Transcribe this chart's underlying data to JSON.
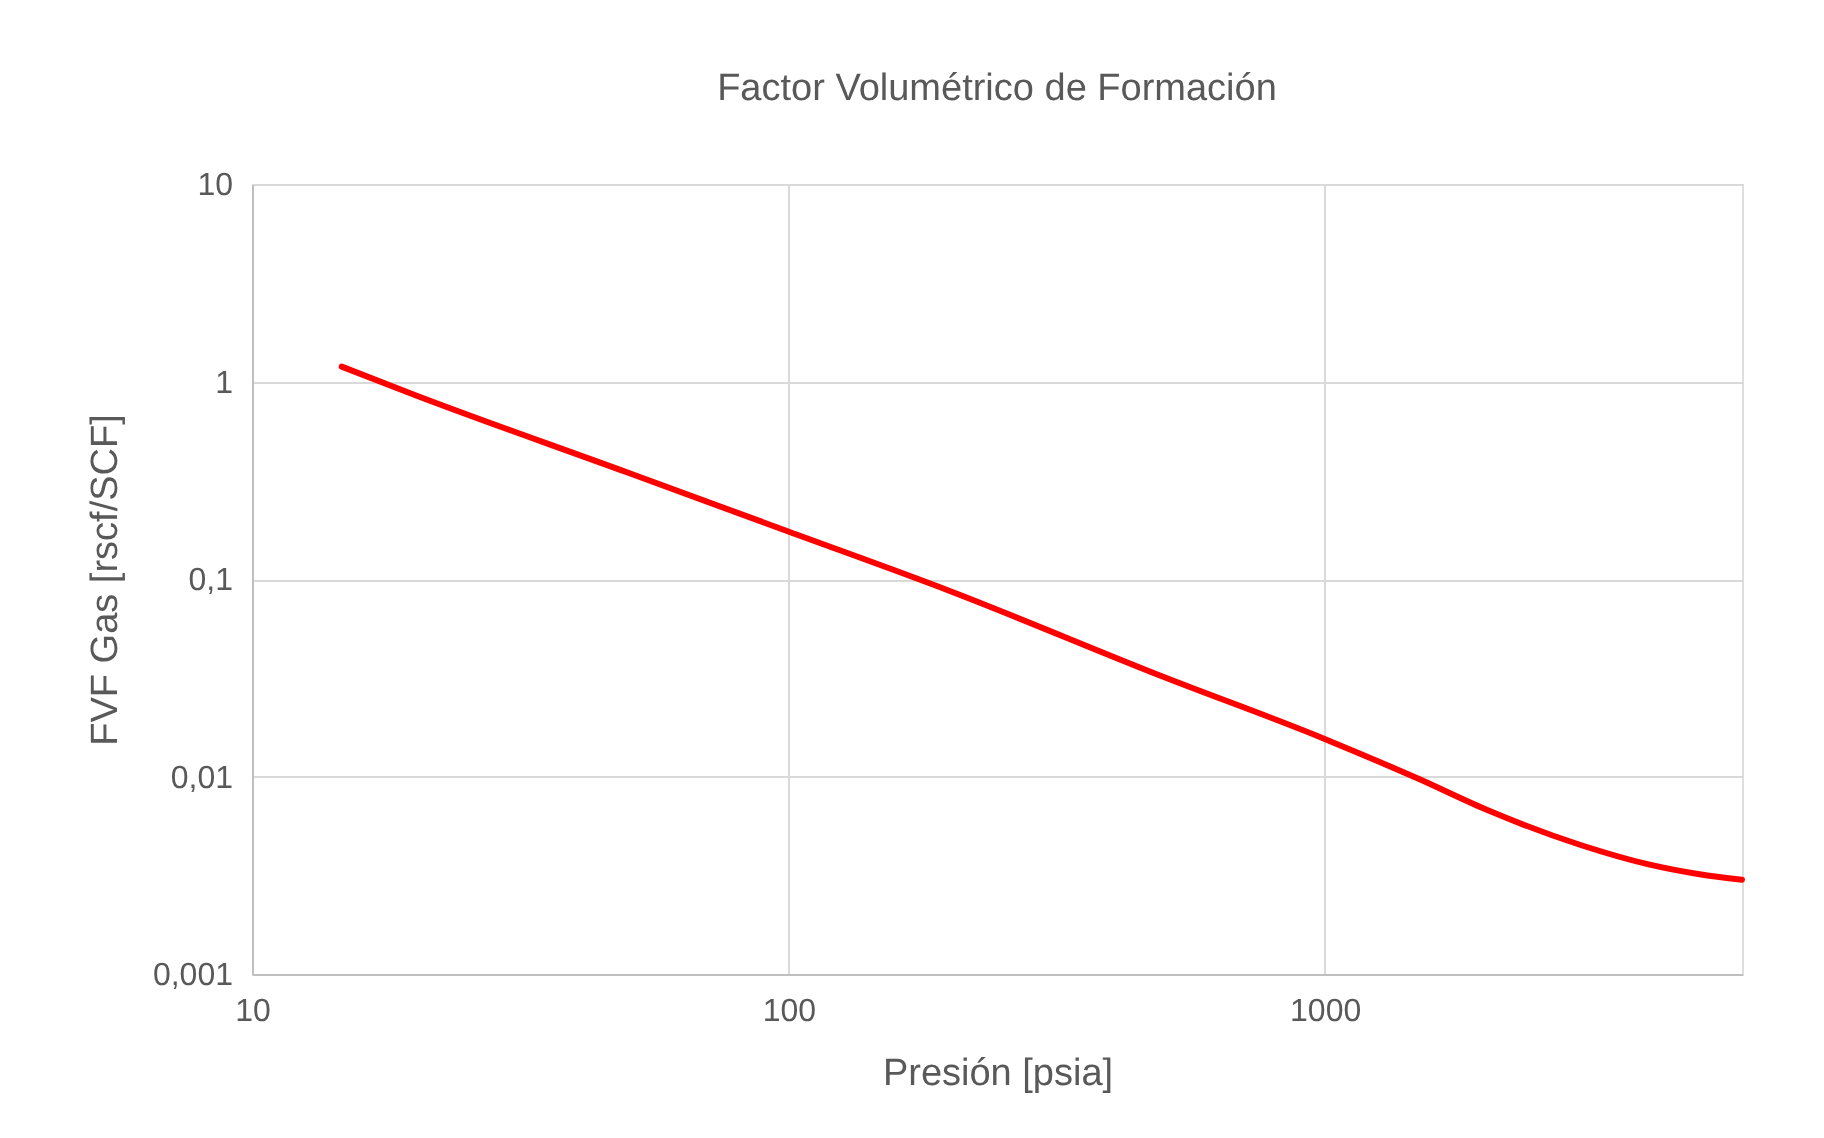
{
  "chart_data": {
    "type": "line",
    "title": "Factor Volumétrico de Formación",
    "xlabel": "Presión [psia]",
    "ylabel": "FVF Gas [rscf/SCF]",
    "x": [
      14.7,
      20,
      50,
      100,
      200,
      500,
      1000,
      1500,
      2000,
      3000,
      4000,
      5000,
      6000
    ],
    "series": [
      {
        "color": "#ff0000",
        "values": [
          1.19,
          0.86,
          0.347,
          0.174,
          0.087,
          0.032,
          0.0155,
          0.0097,
          0.0068,
          0.0045,
          0.0036,
          0.0032,
          0.003
        ]
      }
    ],
    "log": "xy",
    "xlim": [
      10,
      6000
    ],
    "xticks": [
      10,
      100,
      1000
    ],
    "ylim": [
      0.001,
      10
    ],
    "yticks": [
      {
        "value": 0.001,
        "label": "0,001"
      },
      {
        "value": 0.01,
        "label": "0,01"
      },
      {
        "value": 0.1,
        "label": "0,1"
      },
      1,
      10
    ],
    "grid": true,
    "marker": "none",
    "line_style": "solid"
  }
}
